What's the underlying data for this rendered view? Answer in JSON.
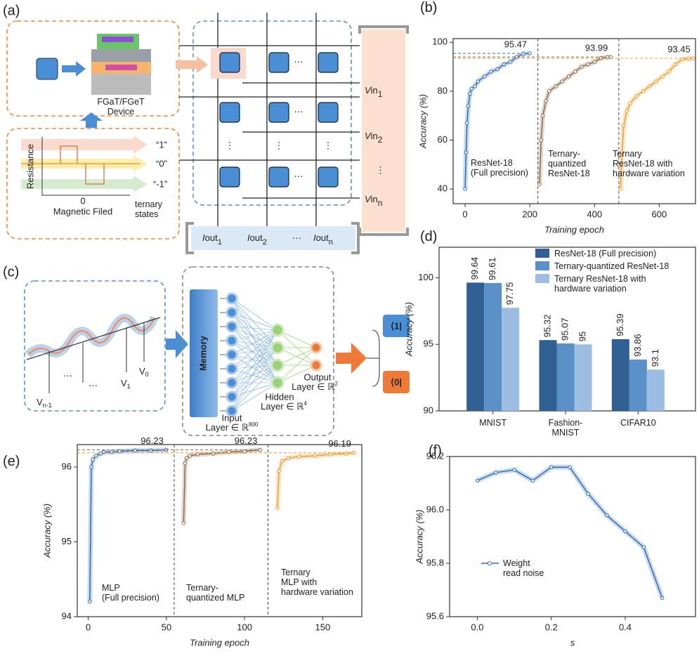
{
  "figure": {
    "panel_a": {
      "label": "(a)",
      "device": "FGaT/FGeT\nDevice",
      "states": [
        "“1”",
        "“0”",
        "“-1”"
      ],
      "y_axis": "Resistance",
      "origin": "0",
      "x_axis": "Magnetic Filed",
      "states_label": "ternary\nstates",
      "vin": [
        [
          "V",
          "in",
          "1"
        ],
        [
          "V",
          "in",
          "2"
        ],
        [
          "V",
          "in",
          "n"
        ]
      ],
      "iout": [
        [
          "I",
          "out",
          "1"
        ],
        [
          "I",
          "out",
          "2"
        ],
        [
          "I",
          "out",
          "n"
        ]
      ],
      "h_dots": "⋯",
      "v_dots": "⋮"
    },
    "panel_c": {
      "label": "(c)",
      "memory": "Memory",
      "input": [
        "Input",
        "Layer ∈ ℝ",
        "800"
      ],
      "hidden": [
        "Hidden",
        "Layer ∈ ℝ",
        "4"
      ],
      "output": [
        "Output",
        "Layer ∈ ℝ",
        "2"
      ],
      "bra1": "⟨1|",
      "bra0": "⟨0|",
      "v_labels": [
        [
          "V",
          "n-1"
        ],
        [
          "V",
          "1"
        ],
        [
          "V",
          "0"
        ]
      ],
      "dots": "⋯"
    }
  },
  "chart_data": [
    {
      "panel": "(b)",
      "type": "line",
      "xlabel": "Training epoch",
      "ylabel": "Accuracy (%)",
      "xlim": [
        -37,
        712
      ],
      "ylim": [
        34,
        101.5
      ],
      "xticks": [
        0,
        200,
        400,
        600
      ],
      "yticks": [
        40,
        60,
        80,
        100
      ],
      "dividers": [
        225,
        475
      ],
      "series": [
        {
          "name": "ResNet-18\n(Full precision)",
          "color": "#2e6db4",
          "x": [
            0,
            3,
            6,
            10,
            15,
            20,
            30,
            40,
            60,
            80,
            100,
            120,
            140,
            160,
            180,
            200
          ],
          "values": [
            40,
            55,
            67,
            74,
            79,
            81,
            82,
            84,
            86,
            88,
            89,
            91,
            92,
            94,
            95.3,
            95.47
          ],
          "max": 95.47
        },
        {
          "name": "Ternary-\nquantized\nResNet-18",
          "color": "#8b6a4a",
          "x": [
            230,
            235,
            240,
            250,
            260,
            280,
            300,
            320,
            340,
            360,
            380,
            400,
            420,
            440,
            450
          ],
          "values": [
            42,
            60,
            70,
            76,
            80,
            82,
            84,
            86,
            88,
            90,
            91,
            92,
            93.5,
            93.9,
            93.99
          ],
          "max": 93.99
        },
        {
          "name": "Ternary\nResNet-18 with\nhardware variation",
          "color": "#f39a2a",
          "x": [
            480,
            485,
            490,
            500,
            510,
            530,
            550,
            570,
            590,
            610,
            630,
            650,
            670,
            690,
            705
          ],
          "values": [
            40,
            55,
            66,
            72,
            75,
            78,
            80,
            82,
            84,
            86,
            88,
            91,
            93,
            93.3,
            93.45
          ],
          "max": 93.45
        }
      ]
    },
    {
      "panel": "(d)",
      "type": "bar",
      "ylabel": "Accuracy (%)",
      "categories": [
        "MNIST",
        "Fashion-\nMNIST",
        "CIFAR10"
      ],
      "ylim": [
        90,
        102.3
      ],
      "yticks": [
        90,
        95,
        100
      ],
      "series": [
        {
          "name": "ResNet-18 (Full precision)",
          "color": "#2f5f93",
          "values": [
            99.64,
            95.32,
            95.39
          ]
        },
        {
          "name": "Ternary-quantized ResNet-18",
          "color": "#5b8fc8",
          "values": [
            99.61,
            95.07,
            93.86
          ]
        },
        {
          "name": "Ternary ResNet-18 with\nhardware variation",
          "color": "#9dbde3",
          "values": [
            97.75,
            95,
            93.1
          ]
        }
      ]
    },
    {
      "panel": "(e)",
      "type": "line",
      "xlabel": "Training epoch",
      "ylabel": "Accuracy (%)",
      "xlim": [
        -7,
        175
      ],
      "ylim": [
        94,
        96.3
      ],
      "xticks": [
        0,
        50,
        100,
        150
      ],
      "yticks": [
        94,
        95,
        96
      ],
      "dividers": [
        55,
        115
      ],
      "series": [
        {
          "name": "MLP\n(Full precision)",
          "color": "#2e6db4",
          "x": [
            1,
            2,
            3,
            5,
            8,
            10,
            15,
            20,
            30,
            40,
            50
          ],
          "values": [
            94.2,
            96.0,
            96.1,
            96.15,
            96.18,
            96.2,
            96.2,
            96.21,
            96.22,
            96.22,
            96.23
          ],
          "max": 96.23
        },
        {
          "name": "Ternary-\nquantized MLP",
          "color": "#8b6a4a",
          "x": [
            61,
            62,
            63,
            65,
            70,
            80,
            90,
            100,
            110
          ],
          "values": [
            95.25,
            96.05,
            96.12,
            96.15,
            96.17,
            96.18,
            96.2,
            96.21,
            96.23
          ],
          "max": 96.23
        },
        {
          "name": "Ternary\nMLP with\nhardware variation",
          "color": "#f39a2a",
          "x": [
            121,
            122,
            124,
            128,
            135,
            145,
            155,
            165,
            170
          ],
          "values": [
            95.45,
            95.95,
            96.08,
            96.12,
            96.14,
            96.15,
            96.17,
            96.18,
            96.19
          ],
          "max": 96.19
        }
      ]
    },
    {
      "panel": "(f)",
      "type": "line",
      "xlabel": "s",
      "ylabel": "Accuracy (%)",
      "xlim": [
        -0.075,
        0.59
      ],
      "ylim": [
        95.6,
        96.2
      ],
      "xticks": [
        {
          "value": 0,
          "label": "0.0"
        },
        0.2,
        0.4
      ],
      "yticks": [
        95.6,
        95.8,
        {
          "value": 96,
          "label": "96.0"
        },
        96.2
      ],
      "legend": "lower left",
      "series": [
        {
          "name": "Weight\nread noise",
          "color": "#2e6db4",
          "x": [
            0,
            0.05,
            0.1,
            0.15,
            0.2,
            0.25,
            0.3,
            0.35,
            0.4,
            0.45,
            0.5
          ],
          "values": [
            96.11,
            96.14,
            96.15,
            96.11,
            96.16,
            96.16,
            96.06,
            95.98,
            95.92,
            95.86,
            95.67
          ]
        }
      ]
    }
  ]
}
